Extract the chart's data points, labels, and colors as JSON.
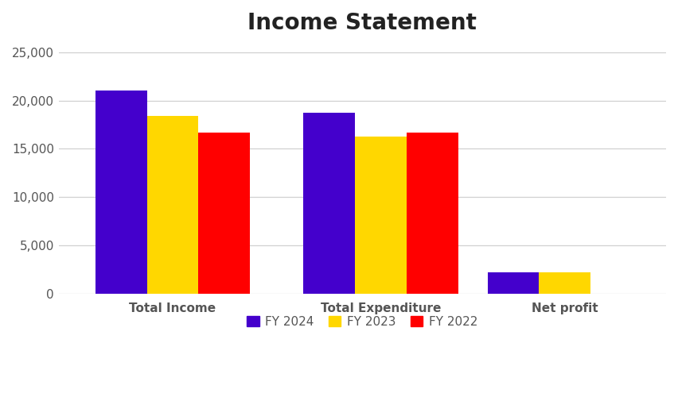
{
  "title": "Income Statement",
  "categories": [
    "Total Income",
    "Total Expenditure",
    "Net profit"
  ],
  "series": [
    {
      "label": "FY 2024",
      "color": "#4400CC",
      "values": [
        21000,
        18700,
        2200
      ]
    },
    {
      "label": "FY 2023",
      "color": "#FFD700",
      "values": [
        18400,
        16300,
        2200
      ]
    },
    {
      "label": "FY 2022",
      "color": "#FF0000",
      "values": [
        16700,
        16700,
        0
      ]
    }
  ],
  "ylim": [
    0,
    26000
  ],
  "yticks": [
    0,
    5000,
    10000,
    15000,
    20000,
    25000
  ],
  "bar_width": 0.28,
  "group_positions": [
    0.42,
    1.55,
    2.55
  ],
  "background_color": "#ffffff",
  "plot_bg_color": "#ffffff",
  "title_fontsize": 20,
  "tick_fontsize": 11,
  "legend_fontsize": 11,
  "grid_color": "#d0d0d0",
  "tick_color": "#555555"
}
